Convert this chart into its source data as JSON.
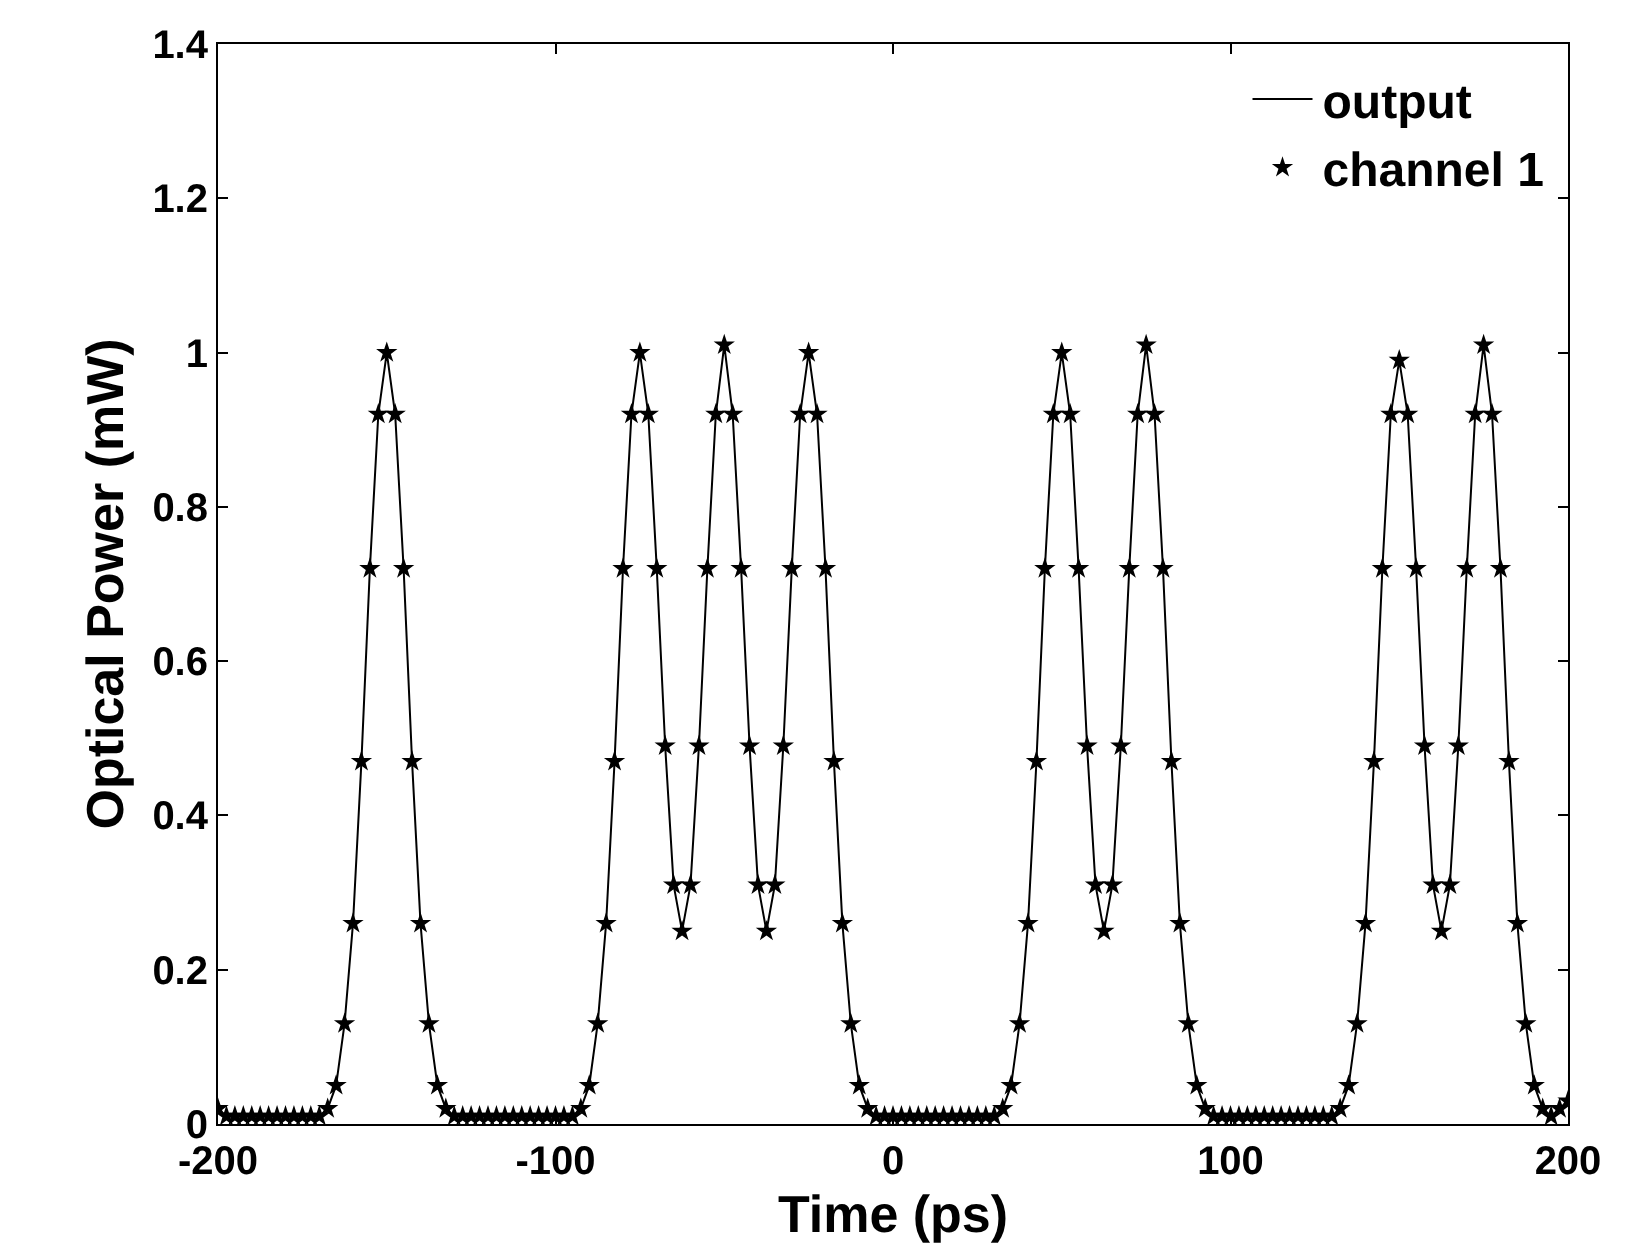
{
  "chart_data": {
    "type": "line",
    "xlabel": "Time (ps)",
    "ylabel": "Optical Power (mW)",
    "x": [
      -200,
      -197.5,
      -195,
      -192.5,
      -190,
      -187.5,
      -185,
      -182.5,
      -180,
      -177.5,
      -175,
      -172.5,
      -170,
      -167.5,
      -165,
      -162.5,
      -160,
      -157.5,
      -155,
      -152.5,
      -150,
      -147.5,
      -145,
      -142.5,
      -140,
      -137.5,
      -135,
      -132.5,
      -130,
      -127.5,
      -125,
      -122.5,
      -120,
      -117.5,
      -115,
      -112.5,
      -110,
      -107.5,
      -105,
      -102.5,
      -100,
      -97.5,
      -95,
      -92.5,
      -90,
      -87.5,
      -85,
      -82.5,
      -80,
      -77.5,
      -75,
      -72.5,
      -70,
      -67.5,
      -65,
      -62.5,
      -60,
      -57.5,
      -55,
      -52.5,
      -50,
      -47.5,
      -45,
      -42.5,
      -40,
      -37.5,
      -35,
      -32.5,
      -30,
      -27.5,
      -25,
      -22.5,
      -20,
      -17.5,
      -15,
      -12.5,
      -10,
      -7.5,
      -5,
      -2.5,
      0,
      2.5,
      5,
      7.5,
      10,
      12.5,
      15,
      17.5,
      20,
      22.5,
      25,
      27.5,
      30,
      32.5,
      35,
      37.5,
      40,
      42.5,
      45,
      47.5,
      50,
      52.5,
      55,
      57.5,
      60,
      62.5,
      65,
      67.5,
      70,
      72.5,
      75,
      77.5,
      80,
      82.5,
      85,
      87.5,
      90,
      92.5,
      95,
      97.5,
      100,
      102.5,
      105,
      107.5,
      110,
      112.5,
      115,
      117.5,
      120,
      122.5,
      125,
      127.5,
      130,
      132.5,
      135,
      137.5,
      140,
      142.5,
      145,
      147.5,
      150,
      152.5,
      155,
      157.5,
      160,
      162.5,
      165,
      167.5,
      170,
      172.5,
      175,
      177.5,
      180,
      182.5,
      185,
      187.5,
      190,
      192.5,
      195,
      197.5,
      200
    ],
    "series": [
      {
        "name": "output",
        "color": "#000000",
        "marker": "none",
        "line_style": "solid",
        "values": [
          0.02,
          0.01,
          0.01,
          0.01,
          0.01,
          0.01,
          0.01,
          0.01,
          0.01,
          0.01,
          0.01,
          0.01,
          0.01,
          0.02,
          0.05,
          0.13,
          0.26,
          0.47,
          0.72,
          0.92,
          1.0,
          0.92,
          0.72,
          0.47,
          0.26,
          0.13,
          0.05,
          0.02,
          0.01,
          0.01,
          0.01,
          0.01,
          0.01,
          0.01,
          0.01,
          0.01,
          0.01,
          0.01,
          0.01,
          0.01,
          0.01,
          0.01,
          0.01,
          0.02,
          0.05,
          0.13,
          0.26,
          0.47,
          0.72,
          0.92,
          1.0,
          0.92,
          0.72,
          0.49,
          0.31,
          0.25,
          0.31,
          0.49,
          0.72,
          0.92,
          1.01,
          0.92,
          0.72,
          0.49,
          0.31,
          0.25,
          0.31,
          0.49,
          0.72,
          0.92,
          1.0,
          0.92,
          0.72,
          0.47,
          0.26,
          0.13,
          0.05,
          0.02,
          0.01,
          0.01,
          0.01,
          0.01,
          0.01,
          0.01,
          0.01,
          0.01,
          0.01,
          0.01,
          0.01,
          0.01,
          0.01,
          0.01,
          0.01,
          0.02,
          0.05,
          0.13,
          0.26,
          0.47,
          0.72,
          0.92,
          1.0,
          0.92,
          0.72,
          0.49,
          0.31,
          0.25,
          0.31,
          0.49,
          0.72,
          0.92,
          1.01,
          0.92,
          0.72,
          0.47,
          0.26,
          0.13,
          0.05,
          0.02,
          0.01,
          0.01,
          0.01,
          0.01,
          0.01,
          0.01,
          0.01,
          0.01,
          0.01,
          0.01,
          0.01,
          0.01,
          0.01,
          0.01,
          0.01,
          0.02,
          0.05,
          0.13,
          0.26,
          0.47,
          0.72,
          0.92,
          0.99,
          0.92,
          0.72,
          0.49,
          0.31,
          0.25,
          0.31,
          0.49,
          0.72,
          0.92,
          1.01,
          0.92,
          0.72,
          0.47,
          0.26,
          0.13,
          0.05,
          0.02,
          0.01,
          0.02,
          0.03
        ]
      },
      {
        "name": "channel 1",
        "type": "scatter",
        "color": "#000000",
        "marker": "star",
        "values": [
          0.02,
          0.01,
          0.01,
          0.01,
          0.01,
          0.01,
          0.01,
          0.01,
          0.01,
          0.01,
          0.01,
          0.01,
          0.01,
          0.02,
          0.05,
          0.13,
          0.26,
          0.47,
          0.72,
          0.92,
          1.0,
          0.92,
          0.72,
          0.47,
          0.26,
          0.13,
          0.05,
          0.02,
          0.01,
          0.01,
          0.01,
          0.01,
          0.01,
          0.01,
          0.01,
          0.01,
          0.01,
          0.01,
          0.01,
          0.01,
          0.01,
          0.01,
          0.01,
          0.02,
          0.05,
          0.13,
          0.26,
          0.47,
          0.72,
          0.92,
          1.0,
          0.92,
          0.72,
          0.49,
          0.31,
          0.25,
          0.31,
          0.49,
          0.72,
          0.92,
          1.01,
          0.92,
          0.72,
          0.49,
          0.31,
          0.25,
          0.31,
          0.49,
          0.72,
          0.92,
          1.0,
          0.92,
          0.72,
          0.47,
          0.26,
          0.13,
          0.05,
          0.02,
          0.01,
          0.01,
          0.01,
          0.01,
          0.01,
          0.01,
          0.01,
          0.01,
          0.01,
          0.01,
          0.01,
          0.01,
          0.01,
          0.01,
          0.01,
          0.02,
          0.05,
          0.13,
          0.26,
          0.47,
          0.72,
          0.92,
          1.0,
          0.92,
          0.72,
          0.49,
          0.31,
          0.25,
          0.31,
          0.49,
          0.72,
          0.92,
          1.01,
          0.92,
          0.72,
          0.47,
          0.26,
          0.13,
          0.05,
          0.02,
          0.01,
          0.01,
          0.01,
          0.01,
          0.01,
          0.01,
          0.01,
          0.01,
          0.01,
          0.01,
          0.01,
          0.01,
          0.01,
          0.01,
          0.01,
          0.02,
          0.05,
          0.13,
          0.26,
          0.47,
          0.72,
          0.92,
          0.99,
          0.92,
          0.72,
          0.49,
          0.31,
          0.25,
          0.31,
          0.49,
          0.72,
          0.92,
          1.01,
          0.92,
          0.72,
          0.47,
          0.26,
          0.13,
          0.05,
          0.02,
          0.01,
          0.02,
          0.03
        ]
      }
    ],
    "xlim": [
      -200,
      200
    ],
    "xticks": [
      -200,
      -100,
      0,
      100,
      200
    ],
    "ylim": [
      0,
      1.4
    ],
    "yticks": [
      0,
      0.2,
      0.4,
      0.6,
      0.8,
      1,
      1.2,
      1.4
    ],
    "grid": false,
    "legend": "top right"
  }
}
